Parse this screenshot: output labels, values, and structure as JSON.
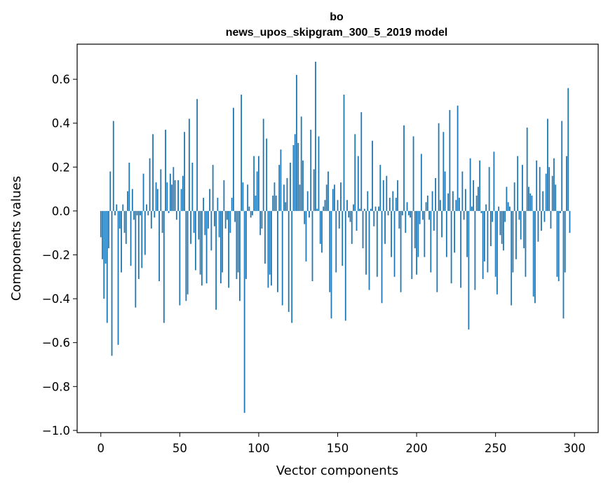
{
  "chart_data": {
    "type": "bar",
    "title": "bo",
    "subtitle": "news_upos_skipgram_300_5_2019 model",
    "xlabel": "Vector components",
    "ylabel": "Components values",
    "xlim": [
      -15,
      315
    ],
    "ylim": [
      -1.01,
      0.76
    ],
    "xticks": [
      0,
      50,
      100,
      150,
      200,
      250,
      300
    ],
    "yticks": [
      -1.0,
      -0.8,
      -0.6,
      -0.4,
      -0.2,
      0.0,
      0.2,
      0.4,
      0.6
    ],
    "ytick_labels": [
      "−1.0",
      "−0.8",
      "−0.6",
      "−0.4",
      "−0.2",
      "0.0",
      "0.2",
      "0.4",
      "0.6"
    ],
    "bar_color": "#1f77b4",
    "series": [
      {
        "name": "bo",
        "values": [
          -0.12,
          -0.22,
          -0.4,
          -0.24,
          -0.51,
          -0.17,
          0.18,
          -0.66,
          0.41,
          -0.02,
          0.03,
          -0.61,
          -0.08,
          -0.28,
          0.03,
          -0.1,
          -0.15,
          0.09,
          0.22,
          -0.25,
          0.1,
          -0.04,
          -0.44,
          -0.02,
          -0.31,
          -0.02,
          -0.26,
          0.17,
          -0.2,
          0.03,
          -0.02,
          0.24,
          -0.08,
          0.35,
          -0.03,
          0.13,
          0.1,
          -0.32,
          0.19,
          -0.1,
          -0.51,
          0.37,
          0.13,
          -0.01,
          0.17,
          0.12,
          0.2,
          0.14,
          -0.04,
          0.14,
          -0.43,
          0.1,
          0.16,
          0.36,
          -0.41,
          -0.38,
          0.42,
          -0.15,
          0.22,
          -0.1,
          -0.27,
          0.51,
          -0.13,
          -0.29,
          -0.34,
          0.06,
          -0.11,
          -0.33,
          -0.08,
          0.1,
          -0.18,
          0.21,
          -0.07,
          -0.45,
          0.06,
          -0.12,
          -0.33,
          -0.28,
          0.14,
          -0.08,
          -0.04,
          -0.35,
          -0.1,
          0.06,
          0.47,
          -0.05,
          -0.31,
          -0.28,
          -0.41,
          0.53,
          0.13,
          -0.92,
          -0.31,
          0.12,
          0.02,
          -0.03,
          -0.02,
          0.25,
          0.07,
          0.18,
          0.25,
          -0.11,
          -0.08,
          0.42,
          -0.24,
          0.33,
          -0.35,
          -0.29,
          -0.34,
          0.07,
          0.13,
          0.07,
          -0.37,
          0.21,
          0.28,
          -0.43,
          0.12,
          0.04,
          0.15,
          -0.46,
          0.22,
          -0.51,
          0.3,
          0.35,
          0.62,
          0.31,
          0.12,
          0.43,
          0.23,
          -0.06,
          -0.23,
          0.09,
          -0.03,
          0.37,
          -0.32,
          0.19,
          0.68,
          0.01,
          0.34,
          -0.15,
          -0.19,
          0.02,
          0.05,
          0.12,
          0.18,
          -0.37,
          -0.49,
          0.1,
          0.12,
          -0.28,
          0.05,
          -0.08,
          0.13,
          -0.25,
          0.53,
          -0.5,
          0.05,
          -0.03,
          -0.05,
          -0.15,
          0.03,
          0.35,
          -0.09,
          0.25,
          0.01,
          0.45,
          -0.17,
          0.01,
          -0.29,
          0.09,
          -0.36,
          0.01,
          0.32,
          -0.07,
          0.02,
          -0.3,
          0.02,
          0.21,
          -0.42,
          0.14,
          -0.15,
          0.16,
          -0.02,
          0.06,
          -0.21,
          0.09,
          -0.3,
          0.06,
          0.14,
          -0.08,
          -0.37,
          -0.02,
          0.39,
          -0.1,
          0.04,
          -0.02,
          -0.03,
          -0.31,
          0.34,
          -0.17,
          -0.29,
          -0.21,
          -0.06,
          0.26,
          -0.04,
          -0.21,
          0.04,
          0.07,
          -0.04,
          -0.28,
          0.09,
          -0.09,
          0.15,
          -0.37,
          0.4,
          0.05,
          -0.12,
          0.36,
          0.18,
          -0.21,
          0.08,
          0.46,
          -0.33,
          0.09,
          -0.19,
          0.05,
          0.48,
          0.06,
          -0.35,
          0.18,
          -0.04,
          0.1,
          -0.21,
          -0.54,
          0.24,
          0.02,
          0.14,
          -0.36,
          0.07,
          0.11,
          0.23,
          -0.01,
          -0.31,
          -0.23,
          0.03,
          -0.28,
          0.2,
          -0.16,
          -0.05,
          0.27,
          -0.3,
          -0.38,
          0.02,
          -0.11,
          -0.15,
          -0.18,
          -0.05,
          0.11,
          0.04,
          0.02,
          -0.43,
          -0.28,
          0.13,
          -0.22,
          0.25,
          -0.04,
          -0.13,
          0.21,
          -0.17,
          -0.3,
          0.38,
          0.11,
          0.08,
          0.07,
          -0.39,
          -0.42,
          0.23,
          -0.14,
          0.2,
          -0.09,
          0.09,
          -0.05,
          0.17,
          0.42,
          0.2,
          -0.08,
          0.16,
          0.24,
          0.12,
          -0.3,
          -0.32,
          -0.01,
          0.41,
          -0.49,
          -0.28,
          0.25,
          0.56,
          -0.1
        ]
      }
    ]
  }
}
